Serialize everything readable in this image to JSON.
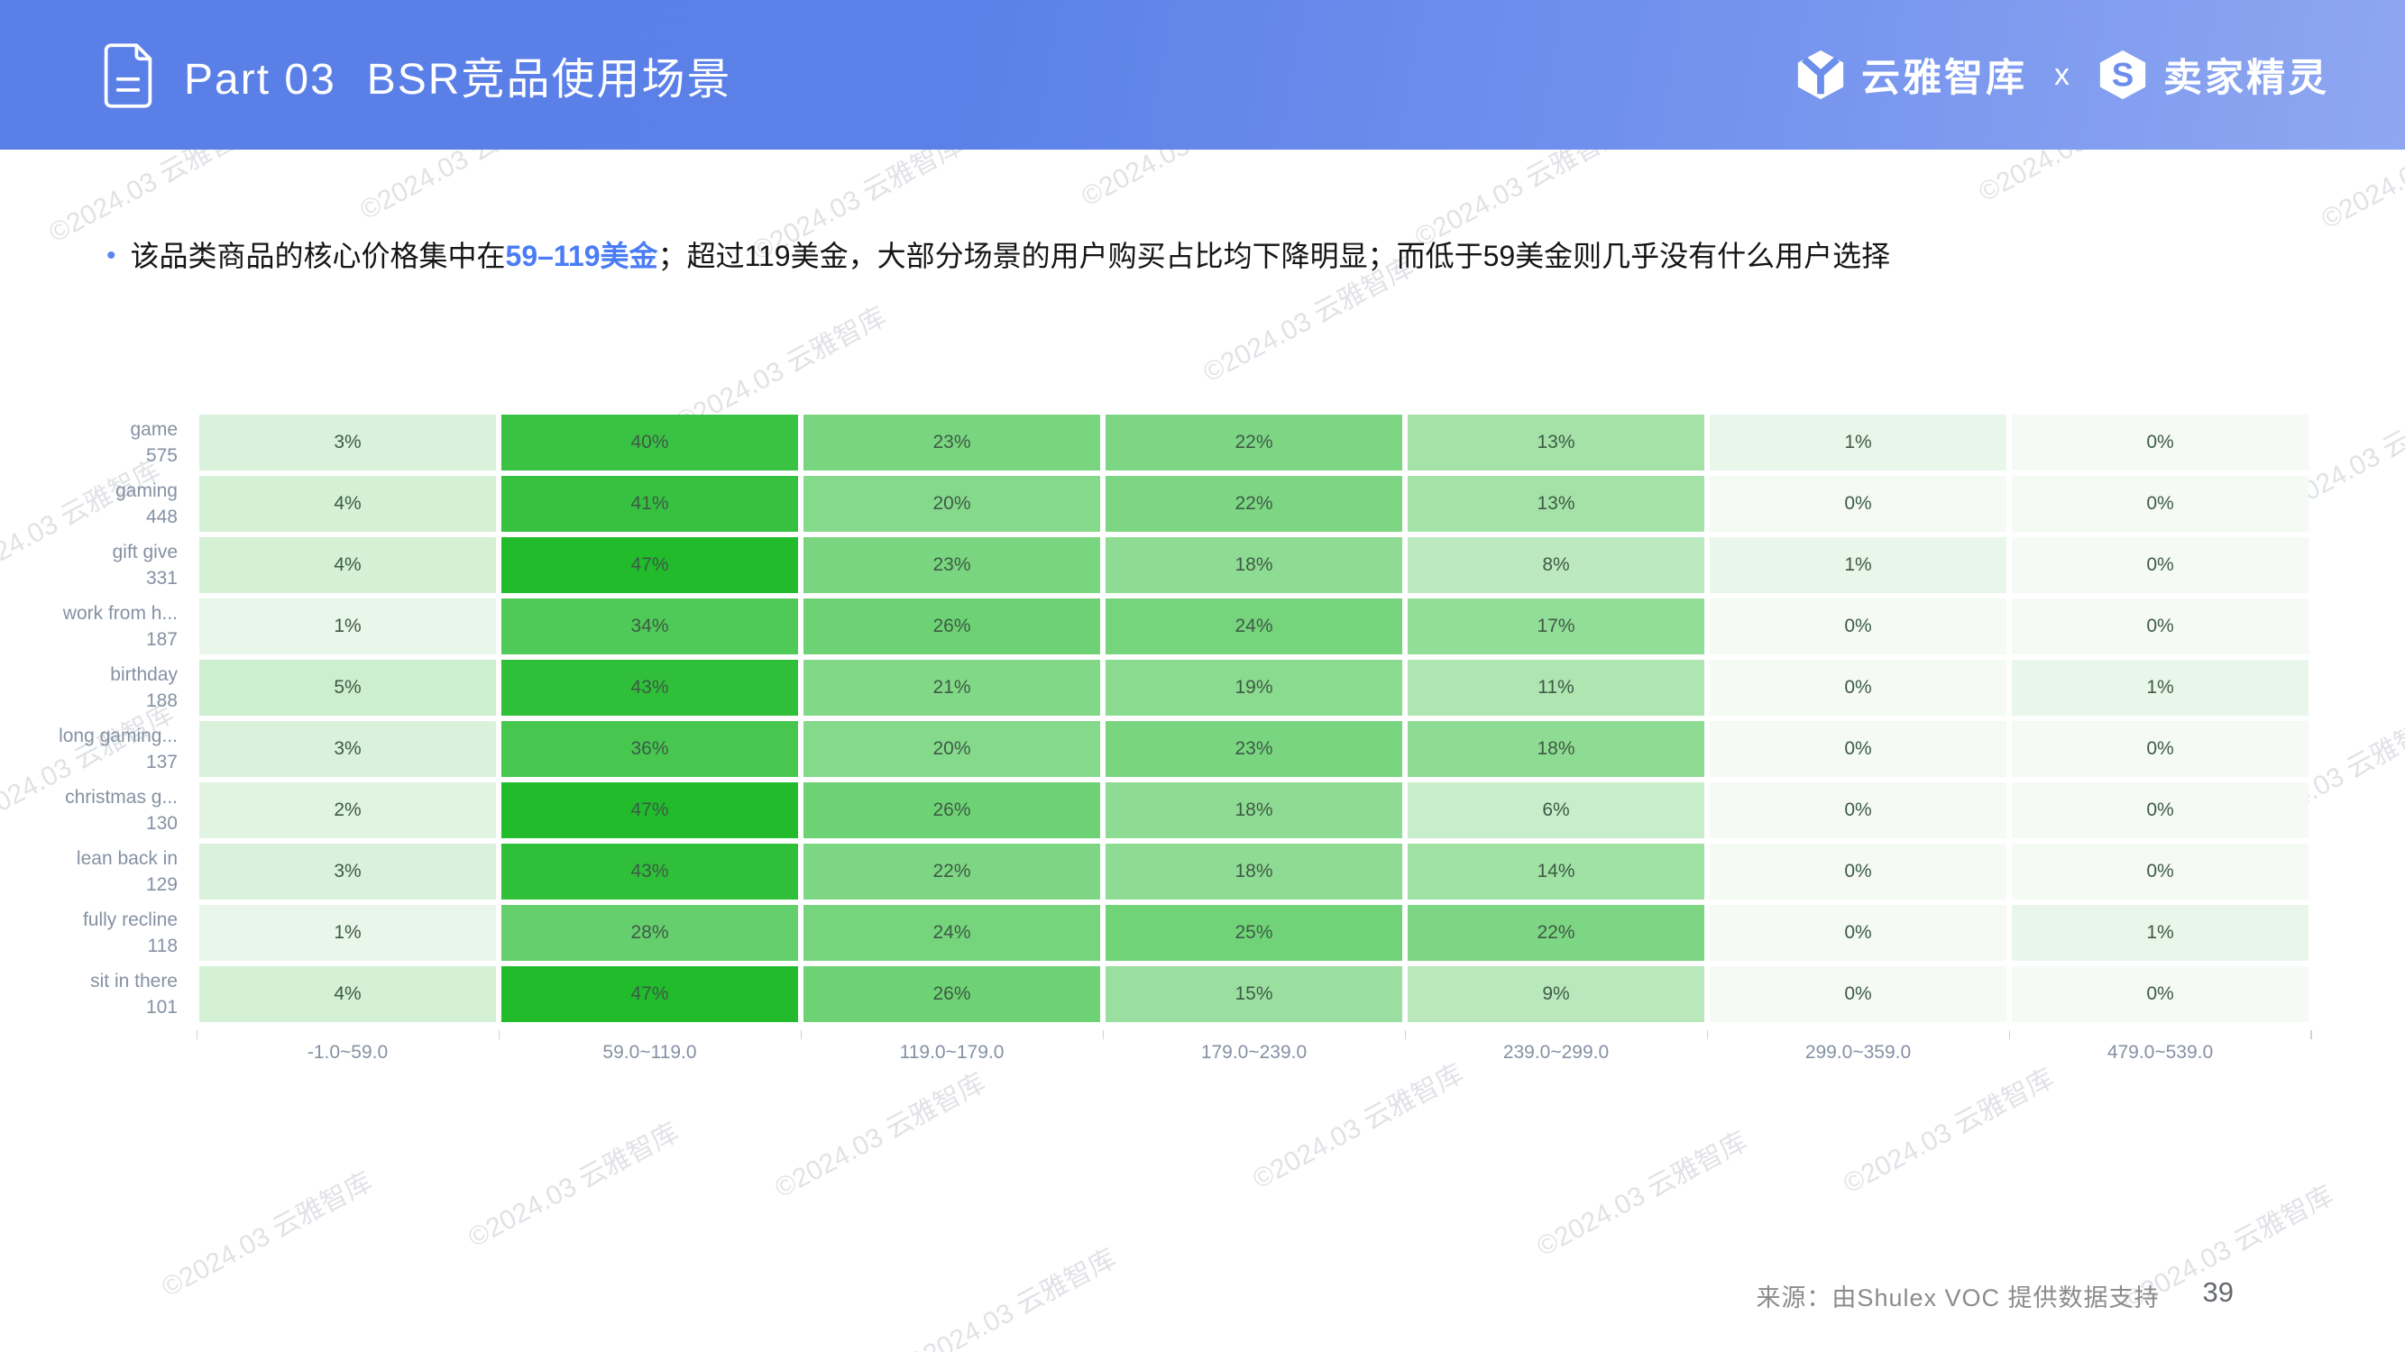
{
  "header": {
    "title_part": "Part 03",
    "title_main": "BSR竞品使用场景",
    "brand_left": "云雅智库",
    "brand_separator": "x",
    "brand_right": "卖家精灵"
  },
  "insight": {
    "bullet": "•",
    "text_before": "该品类商品的核心价格集中在",
    "highlight": "59–119美金",
    "text_after": "；超过119美金，大部分场景的用户购买占比均下降明显；而低于59美金则几乎没有什么用户选择",
    "highlight_color": "#4a7cf5"
  },
  "chart_data": {
    "type": "heatmap",
    "value_suffix": "%",
    "columns": [
      "-1.0~59.0",
      "59.0~119.0",
      "119.0~179.0",
      "179.0~239.0",
      "239.0~299.0",
      "299.0~359.0",
      "479.0~539.0"
    ],
    "rows": [
      {
        "term": "game",
        "count": "575",
        "values": [
          3,
          40,
          23,
          22,
          13,
          1,
          0
        ]
      },
      {
        "term": "gaming",
        "count": "448",
        "values": [
          4,
          41,
          20,
          22,
          13,
          0,
          0
        ]
      },
      {
        "term": "gift give",
        "count": "331",
        "values": [
          4,
          47,
          23,
          18,
          8,
          1,
          0
        ]
      },
      {
        "term": "work from h...",
        "count": "187",
        "values": [
          1,
          34,
          26,
          24,
          17,
          0,
          0
        ]
      },
      {
        "term": "birthday",
        "count": "188",
        "values": [
          5,
          43,
          21,
          19,
          11,
          0,
          1
        ]
      },
      {
        "term": "long gaming...",
        "count": "137",
        "values": [
          3,
          36,
          20,
          23,
          18,
          0,
          0
        ]
      },
      {
        "term": "christmas g...",
        "count": "130",
        "values": [
          2,
          47,
          26,
          18,
          6,
          0,
          0
        ]
      },
      {
        "term": "lean back in",
        "count": "129",
        "values": [
          3,
          43,
          22,
          18,
          14,
          0,
          0
        ]
      },
      {
        "term": "fully recline",
        "count": "118",
        "values": [
          1,
          28,
          24,
          25,
          22,
          0,
          1
        ]
      },
      {
        "term": "sit in there",
        "count": "101",
        "values": [
          4,
          47,
          26,
          15,
          9,
          0,
          0
        ]
      }
    ],
    "color_scale": {
      "min_color": "#f5faf5",
      "max_color": "#21bb2c"
    },
    "grid": false,
    "legend_position": "none"
  },
  "footer": {
    "source": "来源：由Shulex VOC 提供数据支持",
    "page": "39"
  },
  "watermark": {
    "text": "©2024.03 云雅智库"
  }
}
